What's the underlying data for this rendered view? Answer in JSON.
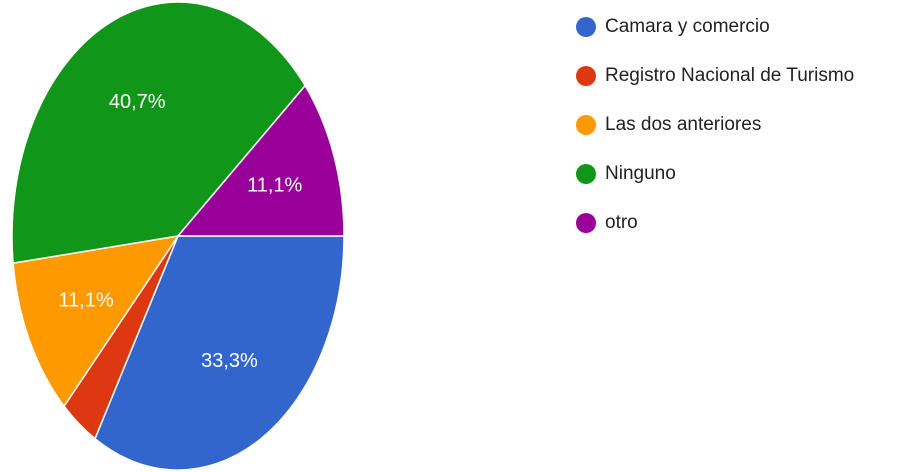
{
  "chart_data": {
    "type": "pie",
    "categories": [
      "Camara y comercio",
      "Registro Nacional de Turismo",
      "Las dos anteriores",
      "Ninguno",
      "otro"
    ],
    "values": [
      33.3,
      3.7,
      11.1,
      40.7,
      11.1
    ],
    "value_labels": [
      "33,3%",
      null,
      "11,1%",
      "40,7%",
      "11,1%"
    ],
    "colors": [
      "#3366cc",
      "#dc3912",
      "#ff9900",
      "#109618",
      "#990099"
    ],
    "legend": "right"
  }
}
